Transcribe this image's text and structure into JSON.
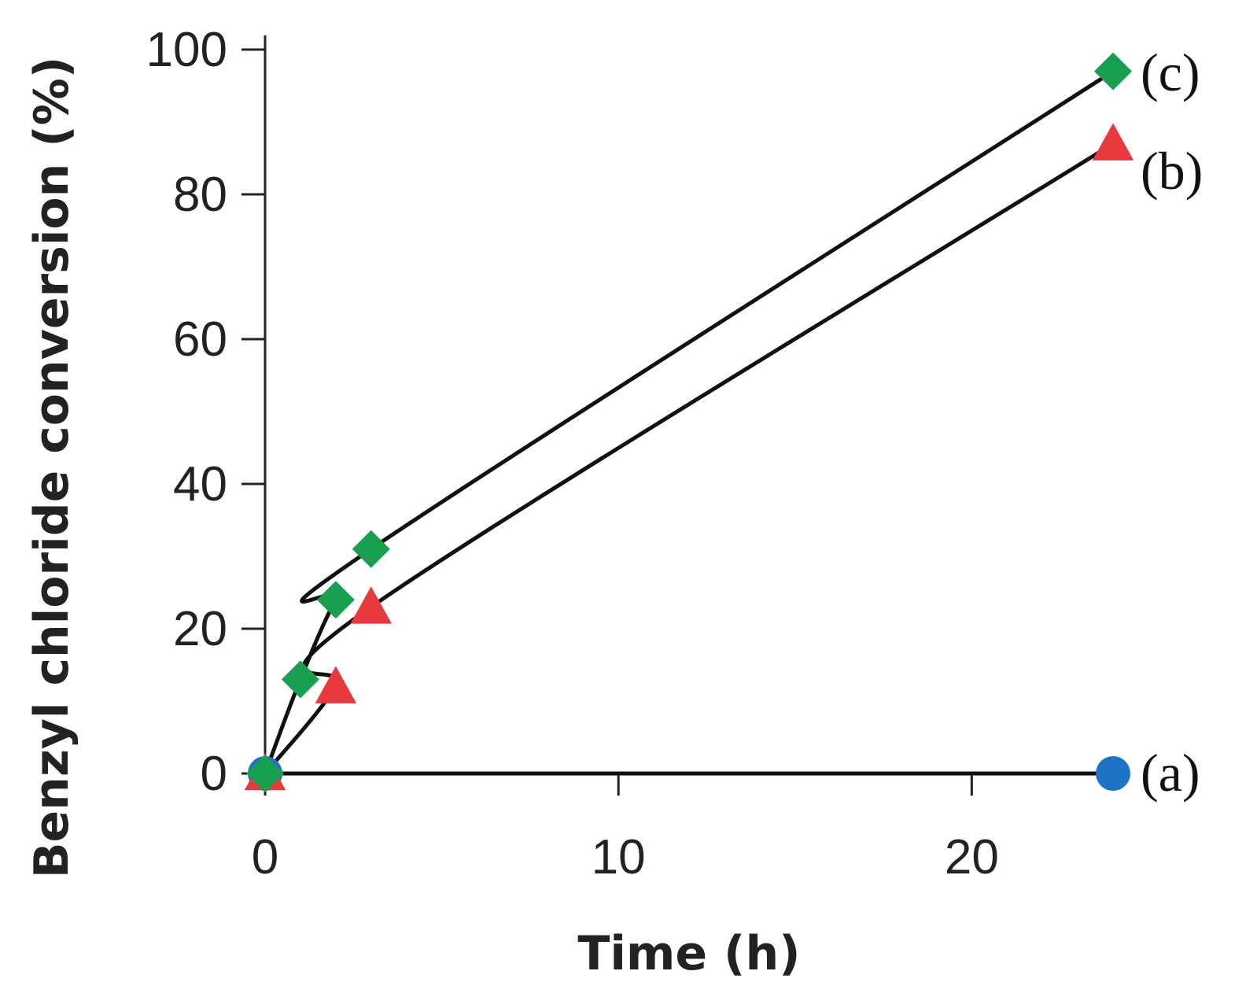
{
  "chart_data": {
    "type": "line",
    "title": "",
    "xlabel": "Time (h)",
    "ylabel": "Benzyl chloride conversion (%)",
    "xlim": [
      0,
      24
    ],
    "ylim": [
      0,
      100
    ],
    "xticks": [
      0,
      10,
      20
    ],
    "yticks": [
      0,
      20,
      40,
      60,
      80,
      100
    ],
    "grid": false,
    "legend": "inline labels at right end of each series",
    "series": [
      {
        "name": "(a)",
        "marker": "circle",
        "color": "#1f73c6",
        "x": [
          0,
          24
        ],
        "y": [
          0,
          0
        ]
      },
      {
        "name": "(b)",
        "marker": "triangle",
        "color": "#e8393e",
        "x": [
          0,
          2,
          3,
          24
        ],
        "y": [
          0,
          12,
          23,
          87
        ]
      },
      {
        "name": "(c)",
        "marker": "diamond",
        "color": "#18a050",
        "x": [
          0,
          1,
          2,
          3,
          24
        ],
        "y": [
          0,
          13,
          24,
          31,
          97
        ]
      }
    ]
  }
}
